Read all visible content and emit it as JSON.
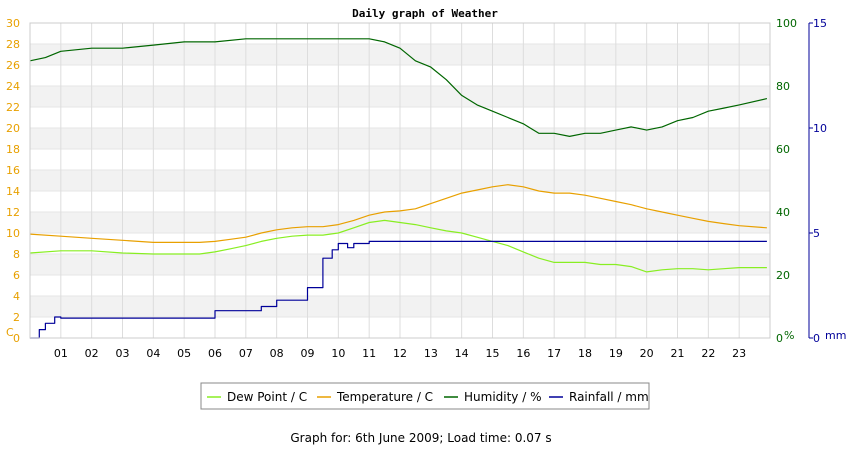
{
  "page": {
    "footer": "Graph for: 6th June 2009; Load time: 0.07 s"
  },
  "chart_data": {
    "type": "line",
    "title": "Daily graph of Weather",
    "x_ticks": [
      "01",
      "02",
      "03",
      "04",
      "05",
      "06",
      "07",
      "08",
      "09",
      "10",
      "11",
      "12",
      "13",
      "14",
      "15",
      "16",
      "17",
      "18",
      "19",
      "20",
      "21",
      "22",
      "23"
    ],
    "xlim": [
      0,
      24
    ],
    "grid": "horizontal bands",
    "legend_position": "bottom",
    "axes": {
      "temperature": {
        "unit": "C",
        "ticks": [
          0,
          2,
          4,
          6,
          8,
          10,
          12,
          14,
          16,
          18,
          20,
          22,
          24,
          26,
          28,
          30
        ],
        "range": [
          0,
          30
        ],
        "color": "#e8a000",
        "side": "left"
      },
      "humidity": {
        "unit": "%",
        "ticks": [
          0,
          20,
          40,
          60,
          80,
          100
        ],
        "range": [
          0,
          100
        ],
        "color": "#006600",
        "side": "right"
      },
      "rainfall": {
        "unit": "mm",
        "ticks": [
          0,
          5,
          10,
          15
        ],
        "range": [
          0,
          15
        ],
        "color": "#000099",
        "side": "right-outer"
      }
    },
    "series": [
      {
        "name": "Dew Point / C",
        "color": "#88ee22",
        "axis": "temperature",
        "x": [
          0,
          1,
          2,
          3,
          4,
          5,
          5.5,
          6,
          6.5,
          7,
          7.5,
          8,
          8.5,
          9,
          9.5,
          10,
          10.5,
          11,
          11.5,
          12,
          12.5,
          13,
          13.5,
          14,
          14.5,
          15,
          15.5,
          16,
          16.5,
          17,
          17.5,
          18,
          18.5,
          19,
          19.5,
          20,
          20.5,
          21,
          21.5,
          22,
          22.5,
          23,
          23.9
        ],
        "y": [
          8.1,
          8.3,
          8.3,
          8.1,
          8.0,
          8.0,
          8.0,
          8.2,
          8.5,
          8.8,
          9.2,
          9.5,
          9.7,
          9.8,
          9.8,
          10.0,
          10.5,
          11.0,
          11.2,
          11.0,
          10.8,
          10.5,
          10.2,
          10.0,
          9.6,
          9.2,
          8.8,
          8.2,
          7.6,
          7.2,
          7.2,
          7.2,
          7.0,
          7.0,
          6.8,
          6.3,
          6.5,
          6.6,
          6.6,
          6.5,
          6.6,
          6.7,
          6.7
        ]
      },
      {
        "name": "Temperature / C",
        "color": "#e8a000",
        "axis": "temperature",
        "x": [
          0,
          1,
          2,
          3,
          4,
          5,
          5.5,
          6,
          6.5,
          7,
          7.5,
          8,
          8.5,
          9,
          9.5,
          10,
          10.5,
          11,
          11.5,
          12,
          12.5,
          13,
          13.5,
          14,
          14.5,
          15,
          15.5,
          16,
          16.5,
          17,
          17.5,
          18,
          18.5,
          19,
          19.5,
          20,
          20.5,
          21,
          21.5,
          22,
          22.5,
          23,
          23.9
        ],
        "y": [
          9.9,
          9.7,
          9.5,
          9.3,
          9.1,
          9.1,
          9.1,
          9.2,
          9.4,
          9.6,
          10.0,
          10.3,
          10.5,
          10.6,
          10.6,
          10.8,
          11.2,
          11.7,
          12.0,
          12.1,
          12.3,
          12.8,
          13.3,
          13.8,
          14.1,
          14.4,
          14.6,
          14.4,
          14.0,
          13.8,
          13.8,
          13.6,
          13.3,
          13.0,
          12.7,
          12.3,
          12.0,
          11.7,
          11.4,
          11.1,
          10.9,
          10.7,
          10.5
        ]
      },
      {
        "name": "Humidity / %",
        "color": "#006600",
        "axis": "humidity",
        "x": [
          0,
          0.5,
          1,
          2,
          3,
          4,
          5,
          6,
          7,
          8,
          9,
          10,
          10.5,
          11,
          11.5,
          12,
          12.5,
          13,
          13.5,
          14,
          14.5,
          15,
          15.5,
          16,
          16.5,
          17,
          17.5,
          18,
          18.5,
          19,
          19.5,
          20,
          20.5,
          21,
          21.5,
          22,
          22.5,
          23,
          23.9
        ],
        "y": [
          88,
          89,
          91,
          92,
          92,
          93,
          94,
          94,
          95,
          95,
          95,
          95,
          95,
          95,
          94,
          92,
          88,
          86,
          82,
          77,
          74,
          72,
          70,
          68,
          65,
          65,
          64,
          65,
          65,
          66,
          67,
          66,
          67,
          69,
          70,
          72,
          73,
          74,
          76
        ]
      },
      {
        "name": "Rainfall / mm",
        "color": "#000099",
        "axis": "rainfall",
        "step": true,
        "x": [
          0,
          0.3,
          0.5,
          0.8,
          1,
          5.9,
          6,
          7.5,
          8,
          9,
          9.5,
          9.8,
          10,
          10.3,
          10.5,
          11,
          23.9
        ],
        "y": [
          0,
          0.4,
          0.7,
          1.0,
          0.95,
          0.95,
          1.3,
          1.5,
          1.8,
          2.4,
          3.8,
          4.2,
          4.5,
          4.3,
          4.5,
          4.6,
          4.6
        ]
      }
    ]
  }
}
